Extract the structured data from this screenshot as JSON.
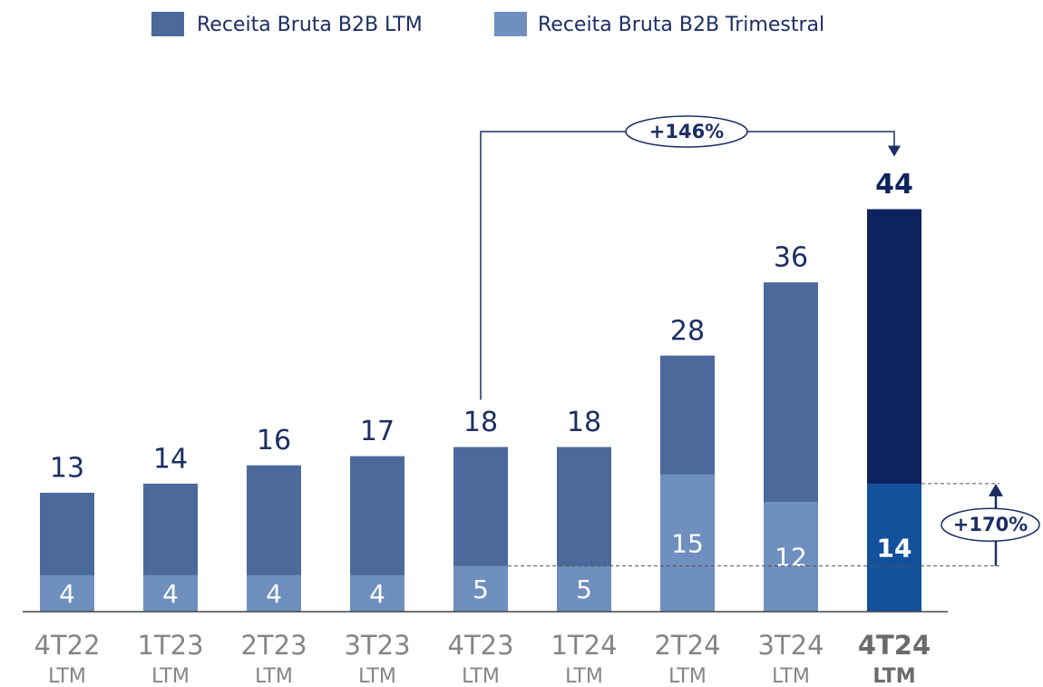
{
  "chart_data": {
    "type": "bar",
    "categories": [
      [
        "4T22",
        "LTM"
      ],
      [
        "1T23",
        "LTM"
      ],
      [
        "2T23",
        "LTM"
      ],
      [
        "3T23",
        "LTM"
      ],
      [
        "4T23",
        "LTM"
      ],
      [
        "1T24",
        "LTM"
      ],
      [
        "2T24",
        "LTM"
      ],
      [
        "3T24",
        "LTM"
      ],
      [
        "4T24",
        "LTM"
      ]
    ],
    "series": [
      {
        "name": "Receita Bruta B2B LTM",
        "color": "#4b6a9b",
        "highlight_color": "#0e235e",
        "values": [
          13,
          14,
          16,
          17,
          18,
          18,
          28,
          36,
          44
        ]
      },
      {
        "name": "Receita Bruta B2B Trimestral",
        "color": "#6f8fbe",
        "highlight_color": "#14519c",
        "values": [
          4,
          4,
          4,
          4,
          5,
          5,
          15,
          12,
          14
        ]
      }
    ],
    "ylim": [
      0,
      50
    ],
    "annotations": [
      "+146%",
      "+170%"
    ]
  }
}
